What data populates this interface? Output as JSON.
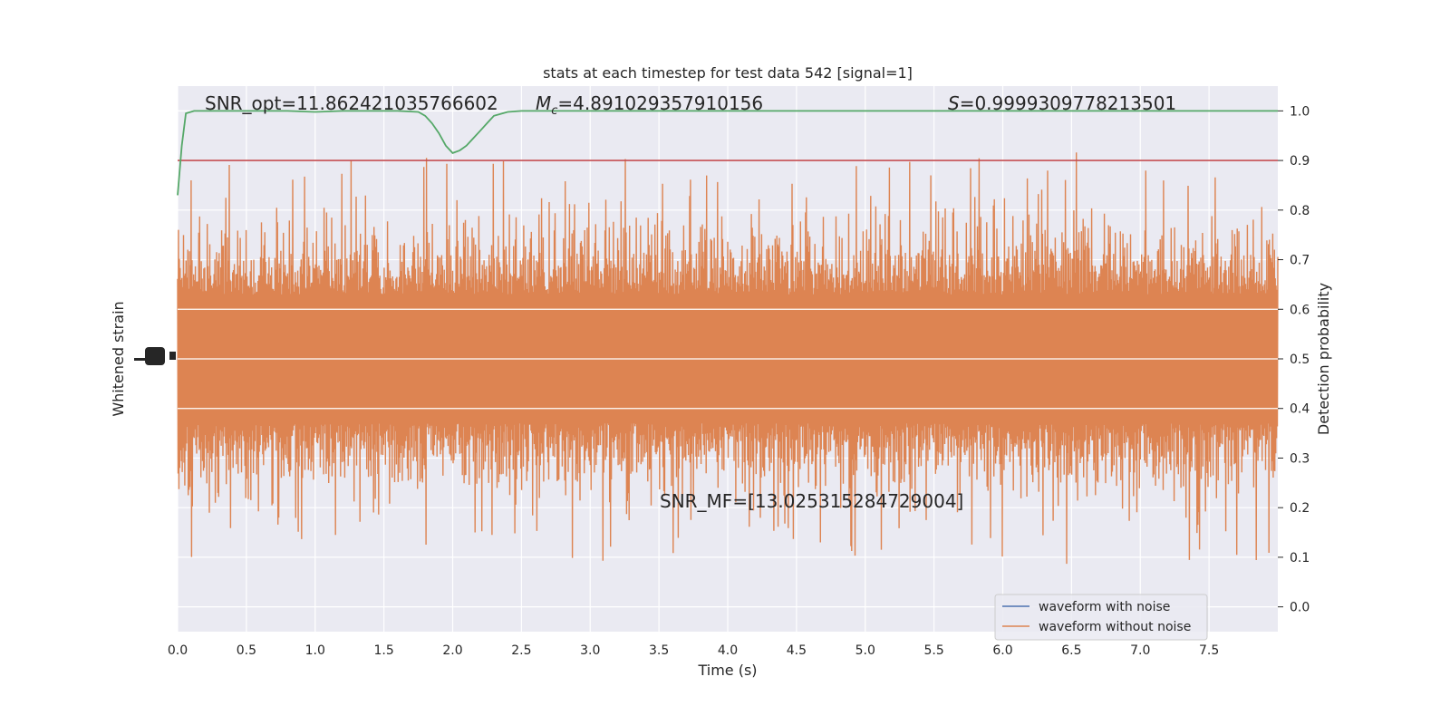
{
  "chart_data": {
    "type": "line",
    "title": "stats at each timestep for test data 542 [signal=1]",
    "xlabel": "Time (s)",
    "ylabel_left": "Whitened strain",
    "ylabel_right": "Detection probability",
    "xlim": [
      0,
      8
    ],
    "ylim_right": [
      -0.05,
      1.05
    ],
    "x_ticks": [
      "0.0",
      "0.5",
      "1.0",
      "1.5",
      "2.0",
      "2.5",
      "3.0",
      "3.5",
      "4.0",
      "4.5",
      "5.0",
      "5.5",
      "6.0",
      "6.5",
      "7.0",
      "7.5"
    ],
    "y_ticks_right": [
      "0.0",
      "0.1",
      "0.2",
      "0.3",
      "0.4",
      "0.5",
      "0.6",
      "0.7",
      "0.8",
      "0.9",
      "1.0"
    ],
    "grid": true,
    "legend_position": "lower-right",
    "annotations": {
      "snr_opt": "SNR_opt=11.862421035766602",
      "mc_symbol": "M",
      "mc_sub": "c",
      "mc_value": "=4.891029357910156",
      "s_symbol": "S",
      "s_value": "=0.9999309778213501",
      "snr_mf": "SNR_MF=[13.025315284729004]"
    },
    "threshold": {
      "y": 0.9,
      "color": "#c44e52"
    },
    "series": [
      {
        "name": "waveform with noise",
        "color": "#4c72b0",
        "axis": "left",
        "description_values": "noise strain, hidden behind clean waveform"
      },
      {
        "name": "waveform without noise",
        "color": "#dd8452",
        "axis": "left",
        "band_center": 0.5,
        "band_halfwidth_core": 0.1,
        "band_halfwidth_typical": 0.2,
        "spike_high_max": 1.0,
        "spike_low_min": 0.07
      },
      {
        "name": "",
        "color": "#55a868",
        "axis": "right",
        "x": [
          0.0,
          0.03,
          0.06,
          0.12,
          0.2,
          0.4,
          0.6,
          0.8,
          1.0,
          1.2,
          1.4,
          1.6,
          1.75,
          1.8,
          1.85,
          1.9,
          1.95,
          2.0,
          2.05,
          2.1,
          2.15,
          2.2,
          2.25,
          2.3,
          2.4,
          2.5,
          2.7,
          3.0,
          3.5,
          4.0,
          4.5,
          5.0,
          5.5,
          6.0,
          6.5,
          7.0,
          7.5,
          8.0
        ],
        "y": [
          0.83,
          0.93,
          0.995,
          1.0,
          1.0,
          1.0,
          1.0,
          1.0,
          0.998,
          1.0,
          1.0,
          1.0,
          0.998,
          0.99,
          0.975,
          0.955,
          0.93,
          0.915,
          0.92,
          0.93,
          0.945,
          0.96,
          0.975,
          0.99,
          0.998,
          1.0,
          1.0,
          1.0,
          1.0,
          1.0,
          1.0,
          1.0,
          1.0,
          1.0,
          1.0,
          1.0,
          1.0,
          1.0
        ]
      }
    ]
  }
}
